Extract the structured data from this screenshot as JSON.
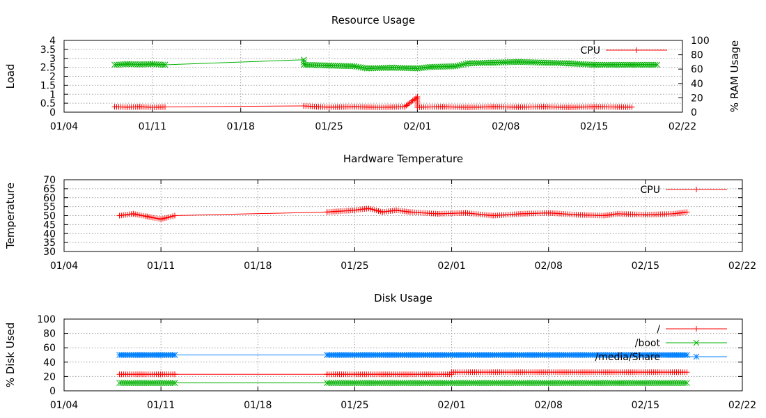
{
  "chart_data": [
    {
      "type": "line",
      "title": "Resource Usage",
      "ylabel": "Load",
      "y2label": "% RAM Usage",
      "x_ticks": [
        "01/04",
        "01/11",
        "01/18",
        "01/25",
        "02/01",
        "02/08",
        "02/15",
        "02/22"
      ],
      "x_range": [
        "01/04",
        "02/22"
      ],
      "ylim": [
        0,
        4
      ],
      "y_ticks": [
        "0",
        "0.5",
        "1",
        "1.5",
        "2",
        "2.5",
        "3",
        "3.5",
        "4"
      ],
      "y2lim": [
        0,
        100
      ],
      "y2_ticks": [
        "0",
        "20",
        "40",
        "60",
        "80",
        "100"
      ],
      "grid": true,
      "legend_placement": "top-right",
      "series": [
        {
          "name": "CPU",
          "axis": "y",
          "color": "#ff0000",
          "marker": "plus",
          "segments": [
            [
              [
                "01/08",
                0.3
              ],
              [
                "01/09",
                0.28
              ],
              [
                "01/10",
                0.3
              ],
              [
                "01/11",
                0.27
              ],
              [
                "01/12",
                0.29
              ]
            ],
            [
              [
                "01/12",
                0.29
              ],
              [
                "01/23",
                0.35
              ]
            ],
            [
              [
                "01/23",
                0.35
              ],
              [
                "01/24",
                0.3
              ],
              [
                "01/25",
                0.28
              ],
              [
                "01/27",
                0.3
              ],
              [
                "01/29",
                0.27
              ],
              [
                "01/31",
                0.3
              ],
              [
                "02/01",
                0.85
              ],
              [
                "02/01",
                0.28
              ],
              [
                "02/03",
                0.3
              ],
              [
                "02/05",
                0.27
              ],
              [
                "02/07",
                0.3
              ],
              [
                "02/09",
                0.28
              ],
              [
                "02/11",
                0.3
              ],
              [
                "02/13",
                0.27
              ],
              [
                "02/15",
                0.3
              ],
              [
                "02/18",
                0.28
              ]
            ]
          ]
        },
        {
          "name": "",
          "axis": "y2",
          "color": "#00b000",
          "marker": "cross",
          "segments": [
            [
              [
                "01/08",
                66
              ],
              [
                "01/09",
                67
              ],
              [
                "01/10",
                66.5
              ],
              [
                "01/11",
                67
              ],
              [
                "01/12",
                66
              ]
            ],
            [
              [
                "01/12",
                66
              ],
              [
                "01/23",
                73
              ]
            ],
            [
              [
                "01/23",
                73
              ],
              [
                "01/23",
                66
              ],
              [
                "01/25",
                65
              ],
              [
                "01/27",
                64
              ],
              [
                "01/28",
                61
              ],
              [
                "01/30",
                62
              ],
              [
                "02/01",
                61
              ],
              [
                "02/02",
                63
              ],
              [
                "02/04",
                64
              ],
              [
                "02/05",
                68
              ],
              [
                "02/07",
                69
              ],
              [
                "02/09",
                70
              ],
              [
                "02/11",
                69
              ],
              [
                "02/13",
                68
              ],
              [
                "02/15",
                66
              ],
              [
                "02/18",
                66
              ],
              [
                "02/20",
                66
              ]
            ]
          ]
        }
      ]
    },
    {
      "type": "line",
      "title": "Hardware Temperature",
      "ylabel": "Temperature",
      "x_ticks": [
        "01/04",
        "01/11",
        "01/18",
        "01/25",
        "02/01",
        "02/08",
        "02/15",
        "02/22"
      ],
      "x_range": [
        "01/04",
        "02/22"
      ],
      "ylim": [
        30,
        70
      ],
      "y_ticks": [
        "30",
        "35",
        "40",
        "45",
        "50",
        "55",
        "60",
        "65",
        "70"
      ],
      "grid": true,
      "legend_placement": "top-right",
      "series": [
        {
          "name": "CPU",
          "color": "#ff0000",
          "marker": "plus",
          "segments": [
            [
              [
                "01/08",
                50
              ],
              [
                "01/09",
                51
              ],
              [
                "01/10",
                49.5
              ],
              [
                "01/11",
                48
              ],
              [
                "01/12",
                50
              ]
            ],
            [
              [
                "01/12",
                50
              ],
              [
                "01/23",
                52
              ]
            ],
            [
              [
                "01/23",
                52
              ],
              [
                "01/24",
                52.5
              ],
              [
                "01/25",
                53
              ],
              [
                "01/26",
                54
              ],
              [
                "01/27",
                52
              ],
              [
                "01/28",
                53
              ],
              [
                "01/29",
                52
              ],
              [
                "01/31",
                51
              ],
              [
                "02/02",
                51.5
              ],
              [
                "02/04",
                50
              ],
              [
                "02/06",
                51
              ],
              [
                "02/08",
                51.5
              ],
              [
                "02/10",
                50.5
              ],
              [
                "02/12",
                50
              ],
              [
                "02/13",
                51
              ],
              [
                "02/15",
                50.5
              ],
              [
                "02/17",
                51
              ],
              [
                "02/18",
                52
              ]
            ]
          ]
        }
      ]
    },
    {
      "type": "line",
      "title": "Disk Usage",
      "ylabel": "% Disk Used",
      "x_ticks": [
        "01/04",
        "01/11",
        "01/18",
        "01/25",
        "02/01",
        "02/08",
        "02/15",
        "02/22"
      ],
      "x_range": [
        "01/04",
        "02/22"
      ],
      "ylim": [
        0,
        100
      ],
      "y_ticks": [
        "0",
        "20",
        "40",
        "60",
        "80",
        "100"
      ],
      "grid": true,
      "legend_placement": "top-right",
      "series": [
        {
          "name": "/",
          "color": "#ff0000",
          "marker": "plus",
          "segments": [
            [
              [
                "01/08",
                23
              ],
              [
                "01/12",
                23
              ]
            ],
            [
              [
                "01/12",
                23
              ],
              [
                "01/23",
                23
              ]
            ],
            [
              [
                "01/23",
                23
              ],
              [
                "02/01",
                23
              ]
            ],
            [
              [
                "02/01",
                26
              ],
              [
                "02/18",
                26
              ]
            ]
          ]
        },
        {
          "name": "/boot",
          "color": "#00b000",
          "marker": "cross",
          "segments": [
            [
              [
                "01/08",
                11
              ],
              [
                "01/12",
                11
              ]
            ],
            [
              [
                "01/12",
                11
              ],
              [
                "01/23",
                11
              ]
            ],
            [
              [
                "01/23",
                11
              ],
              [
                "02/18",
                11
              ]
            ]
          ]
        },
        {
          "name": "/media/Share",
          "color": "#0080ff",
          "marker": "star",
          "segments": [
            [
              [
                "01/08",
                50
              ],
              [
                "01/12",
                50
              ]
            ],
            [
              [
                "01/12",
                50
              ],
              [
                "01/23",
                50
              ]
            ],
            [
              [
                "01/23",
                50
              ],
              [
                "02/18",
                50
              ]
            ]
          ]
        }
      ]
    }
  ]
}
